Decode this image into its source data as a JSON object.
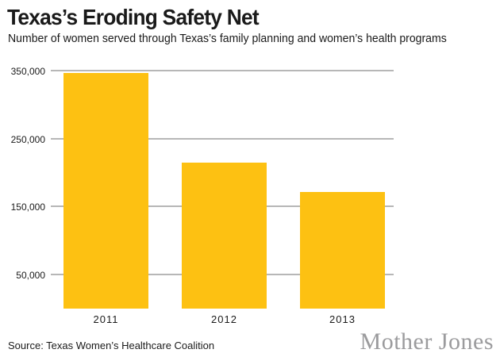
{
  "header": {
    "title": "Texas’s Eroding Safety Net",
    "subtitle": "Number of women served through Texas’s family planning and women’s health programs"
  },
  "chart_data": {
    "type": "bar",
    "categories": [
      "2011",
      "2012",
      "2013"
    ],
    "values": [
      346000,
      215000,
      171000
    ],
    "title": "Texas’s Eroding Safety Net",
    "subtitle": "Number of women served through Texas’s family planning and women’s health programs",
    "xlabel": "",
    "ylabel": "",
    "ylim": [
      0,
      360000
    ],
    "yticks": [
      50000,
      150000,
      250000,
      350000
    ],
    "ytick_labels": [
      "50,000",
      "150,000",
      "250,000",
      "350,000"
    ],
    "grid": true,
    "legend": false,
    "bar_color": "#fdc112",
    "gridline_color": "#b7b7b7",
    "text_color": "#1a1a1a"
  },
  "footer": {
    "source": "Source: Texas Women’s Healthcare Coalition",
    "brand": "Mother Jones"
  }
}
